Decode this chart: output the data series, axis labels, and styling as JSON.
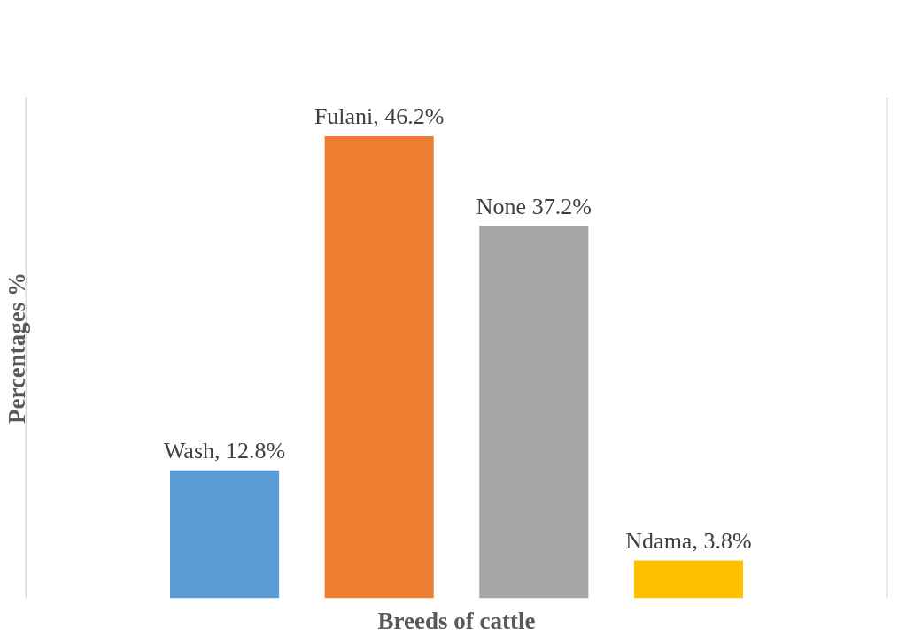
{
  "chart_data": {
    "type": "bar",
    "xlabel": "Breeds of cattle",
    "ylabel": "Percentages %",
    "categories": [
      null,
      null,
      null,
      null
    ],
    "values": [
      12.8,
      46.2,
      37.2,
      3.8
    ],
    "colors": [
      "#5b9bd5",
      "#ed7d31",
      "#a5a5a5",
      "#ffc000"
    ],
    "value_labels": [
      "Wash, 12.8%",
      "Fulani, 46.2%",
      "None 37.2%",
      "Ndama, 3.8%"
    ],
    "grid": false
  }
}
